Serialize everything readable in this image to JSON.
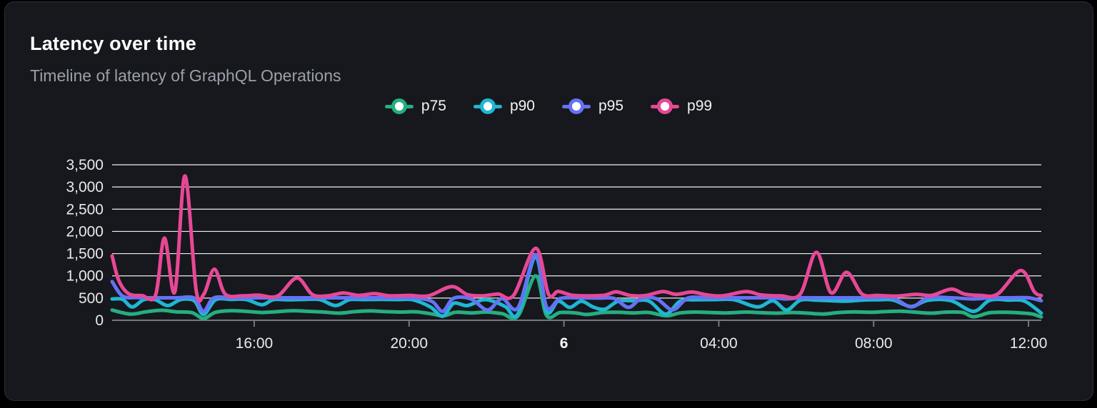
{
  "header": {
    "title": "Latency over time",
    "subtitle": "Timeline of latency of GraphQL Operations"
  },
  "chart_data": {
    "type": "line",
    "title": "Latency over time",
    "subtitle": "Timeline of latency of GraphQL Operations",
    "legend_position": "top-center",
    "grid": "horizontal",
    "x_axis": {
      "kind": "time",
      "domain_hours": [
        12.33,
        36.33
      ],
      "ticks": [
        {
          "t": 16,
          "label": "16:00",
          "bold": false
        },
        {
          "t": 20,
          "label": "20:00",
          "bold": false
        },
        {
          "t": 24,
          "label": "6",
          "bold": true
        },
        {
          "t": 28,
          "label": "04:00",
          "bold": false
        },
        {
          "t": 32,
          "label": "08:00",
          "bold": false
        },
        {
          "t": 36,
          "label": "12:00",
          "bold": false
        }
      ]
    },
    "y_axis": {
      "domain": [
        0,
        3500
      ],
      "ticks": [
        {
          "value": 0,
          "label": "0"
        },
        {
          "value": 500,
          "label": "500"
        },
        {
          "value": 1000,
          "label": "1,000"
        },
        {
          "value": 1500,
          "label": "1,500"
        },
        {
          "value": 2000,
          "label": "2,000"
        },
        {
          "value": 2500,
          "label": "2,500"
        },
        {
          "value": 3000,
          "label": "3,000"
        },
        {
          "value": 3500,
          "label": "3,500"
        }
      ]
    },
    "colors": {
      "grid_line": "#edeff2",
      "axis_line": "#75787e",
      "card_background": "#16181d",
      "page_background": "#000000"
    },
    "series": [
      {
        "name": "p75",
        "color": "#26ae80",
        "points": [
          [
            12.33,
            230
          ],
          [
            12.8,
            140
          ],
          [
            13.2,
            190
          ],
          [
            13.6,
            225
          ],
          [
            14.0,
            190
          ],
          [
            14.4,
            170
          ],
          [
            14.69,
            40
          ],
          [
            15.0,
            180
          ],
          [
            15.4,
            215
          ],
          [
            15.8,
            200
          ],
          [
            16.2,
            175
          ],
          [
            16.6,
            195
          ],
          [
            17.0,
            215
          ],
          [
            17.4,
            200
          ],
          [
            17.8,
            185
          ],
          [
            18.2,
            160
          ],
          [
            18.6,
            195
          ],
          [
            19.0,
            210
          ],
          [
            19.4,
            195
          ],
          [
            19.8,
            185
          ],
          [
            20.2,
            190
          ],
          [
            20.6,
            140
          ],
          [
            20.9,
            100
          ],
          [
            21.2,
            180
          ],
          [
            21.6,
            165
          ],
          [
            22.0,
            185
          ],
          [
            22.4,
            150
          ],
          [
            22.81,
            95
          ],
          [
            23.27,
            1000
          ],
          [
            23.55,
            110
          ],
          [
            23.9,
            175
          ],
          [
            24.3,
            165
          ],
          [
            24.6,
            130
          ],
          [
            25.0,
            175
          ],
          [
            25.4,
            180
          ],
          [
            25.8,
            165
          ],
          [
            26.2,
            175
          ],
          [
            26.65,
            100
          ],
          [
            27.0,
            165
          ],
          [
            27.4,
            185
          ],
          [
            27.8,
            175
          ],
          [
            28.2,
            165
          ],
          [
            28.7,
            185
          ],
          [
            29.1,
            170
          ],
          [
            29.5,
            160
          ],
          [
            29.9,
            175
          ],
          [
            30.3,
            160
          ],
          [
            30.7,
            140
          ],
          [
            31.1,
            175
          ],
          [
            31.5,
            190
          ],
          [
            31.9,
            180
          ],
          [
            32.3,
            195
          ],
          [
            32.7,
            205
          ],
          [
            33.1,
            180
          ],
          [
            33.5,
            160
          ],
          [
            33.9,
            185
          ],
          [
            34.3,
            175
          ],
          [
            34.58,
            80
          ],
          [
            35.0,
            170
          ],
          [
            35.4,
            180
          ],
          [
            35.8,
            165
          ],
          [
            36.1,
            140
          ],
          [
            36.33,
            75
          ]
        ]
      },
      {
        "name": "p90",
        "color": "#1fb7d3",
        "points": [
          [
            12.33,
            480
          ],
          [
            12.6,
            470
          ],
          [
            12.85,
            300
          ],
          [
            13.15,
            465
          ],
          [
            13.45,
            460
          ],
          [
            13.77,
            330
          ],
          [
            14.1,
            465
          ],
          [
            14.45,
            440
          ],
          [
            14.69,
            130
          ],
          [
            15.0,
            460
          ],
          [
            15.4,
            470
          ],
          [
            15.8,
            465
          ],
          [
            16.2,
            350
          ],
          [
            16.5,
            465
          ],
          [
            16.9,
            460
          ],
          [
            17.3,
            470
          ],
          [
            17.7,
            465
          ],
          [
            18.1,
            330
          ],
          [
            18.45,
            460
          ],
          [
            18.8,
            465
          ],
          [
            19.3,
            470
          ],
          [
            19.7,
            465
          ],
          [
            20.1,
            460
          ],
          [
            20.55,
            300
          ],
          [
            20.87,
            90
          ],
          [
            21.15,
            380
          ],
          [
            21.5,
            330
          ],
          [
            21.9,
            460
          ],
          [
            22.2,
            420
          ],
          [
            22.5,
            300
          ],
          [
            22.81,
            140
          ],
          [
            23.27,
            1430
          ],
          [
            23.55,
            200
          ],
          [
            23.85,
            430
          ],
          [
            24.15,
            290
          ],
          [
            24.45,
            430
          ],
          [
            24.75,
            300
          ],
          [
            25.06,
            250
          ],
          [
            25.4,
            430
          ],
          [
            25.8,
            440
          ],
          [
            26.2,
            430
          ],
          [
            26.63,
            140
          ],
          [
            27.0,
            430
          ],
          [
            27.4,
            460
          ],
          [
            27.9,
            465
          ],
          [
            28.4,
            460
          ],
          [
            29.0,
            300
          ],
          [
            29.4,
            440
          ],
          [
            29.75,
            230
          ],
          [
            30.1,
            450
          ],
          [
            30.5,
            455
          ],
          [
            30.9,
            440
          ],
          [
            31.3,
            430
          ],
          [
            31.7,
            455
          ],
          [
            32.1,
            460
          ],
          [
            32.5,
            455
          ],
          [
            32.97,
            310
          ],
          [
            33.4,
            450
          ],
          [
            34.0,
            440
          ],
          [
            34.58,
            200
          ],
          [
            35.0,
            450
          ],
          [
            35.5,
            455
          ],
          [
            35.9,
            430
          ],
          [
            36.33,
            160
          ]
        ]
      },
      {
        "name": "p95",
        "color": "#6672f3",
        "points": [
          [
            12.33,
            870
          ],
          [
            12.6,
            545
          ],
          [
            13.0,
            510
          ],
          [
            13.5,
            505
          ],
          [
            14.0,
            505
          ],
          [
            14.45,
            500
          ],
          [
            14.69,
            200
          ],
          [
            14.95,
            500
          ],
          [
            15.4,
            505
          ],
          [
            16.0,
            505
          ],
          [
            16.6,
            505
          ],
          [
            17.2,
            505
          ],
          [
            17.8,
            505
          ],
          [
            18.4,
            505
          ],
          [
            19.0,
            505
          ],
          [
            19.6,
            505
          ],
          [
            20.2,
            500
          ],
          [
            20.6,
            420
          ],
          [
            20.87,
            200
          ],
          [
            21.15,
            495
          ],
          [
            21.6,
            480
          ],
          [
            22.03,
            230
          ],
          [
            22.4,
            490
          ],
          [
            22.81,
            280
          ],
          [
            23.27,
            1480
          ],
          [
            23.55,
            300
          ],
          [
            23.9,
            490
          ],
          [
            24.4,
            505
          ],
          [
            24.9,
            500
          ],
          [
            25.3,
            490
          ],
          [
            25.67,
            290
          ],
          [
            26.0,
            495
          ],
          [
            26.4,
            480
          ],
          [
            26.81,
            235
          ],
          [
            27.2,
            500
          ],
          [
            27.7,
            505
          ],
          [
            28.3,
            505
          ],
          [
            28.9,
            505
          ],
          [
            29.4,
            505
          ],
          [
            29.75,
            480
          ],
          [
            30.1,
            505
          ],
          [
            30.52,
            505
          ],
          [
            31.0,
            505
          ],
          [
            31.5,
            505
          ],
          [
            32.0,
            505
          ],
          [
            32.5,
            505
          ],
          [
            32.97,
            300
          ],
          [
            33.4,
            505
          ],
          [
            34.0,
            505
          ],
          [
            34.58,
            480
          ],
          [
            35.0,
            505
          ],
          [
            35.5,
            505
          ],
          [
            36.0,
            505
          ],
          [
            36.33,
            440
          ]
        ]
      },
      {
        "name": "p99",
        "color": "#e74895",
        "points": [
          [
            12.33,
            1450
          ],
          [
            12.5,
            900
          ],
          [
            12.75,
            600
          ],
          [
            13.1,
            555
          ],
          [
            13.45,
            560
          ],
          [
            13.68,
            1850
          ],
          [
            13.95,
            640
          ],
          [
            14.21,
            3250
          ],
          [
            14.5,
            680
          ],
          [
            14.7,
            590
          ],
          [
            14.97,
            1150
          ],
          [
            15.25,
            590
          ],
          [
            15.7,
            550
          ],
          [
            16.1,
            565
          ],
          [
            16.6,
            545
          ],
          [
            17.1,
            950
          ],
          [
            17.5,
            580
          ],
          [
            17.9,
            550
          ],
          [
            18.3,
            615
          ],
          [
            18.7,
            560
          ],
          [
            19.1,
            600
          ],
          [
            19.5,
            550
          ],
          [
            20.0,
            560
          ],
          [
            20.5,
            550
          ],
          [
            21.1,
            760
          ],
          [
            21.5,
            580
          ],
          [
            21.9,
            550
          ],
          [
            22.3,
            590
          ],
          [
            22.7,
            560
          ],
          [
            23.27,
            1620
          ],
          [
            23.6,
            590
          ],
          [
            23.85,
            650
          ],
          [
            24.2,
            565
          ],
          [
            24.6,
            550
          ],
          [
            25.05,
            565
          ],
          [
            25.35,
            640
          ],
          [
            25.7,
            560
          ],
          [
            26.1,
            555
          ],
          [
            26.55,
            645
          ],
          [
            26.9,
            585
          ],
          [
            27.3,
            635
          ],
          [
            27.7,
            570
          ],
          [
            28.1,
            550
          ],
          [
            28.7,
            645
          ],
          [
            29.1,
            570
          ],
          [
            29.6,
            550
          ],
          [
            30.1,
            585
          ],
          [
            30.52,
            1530
          ],
          [
            30.9,
            620
          ],
          [
            31.3,
            1080
          ],
          [
            31.7,
            590
          ],
          [
            32.1,
            560
          ],
          [
            32.6,
            545
          ],
          [
            33.1,
            585
          ],
          [
            33.5,
            560
          ],
          [
            34.0,
            700
          ],
          [
            34.35,
            590
          ],
          [
            34.75,
            560
          ],
          [
            35.2,
            590
          ],
          [
            35.8,
            1120
          ],
          [
            36.15,
            640
          ],
          [
            36.33,
            555
          ]
        ]
      }
    ]
  }
}
